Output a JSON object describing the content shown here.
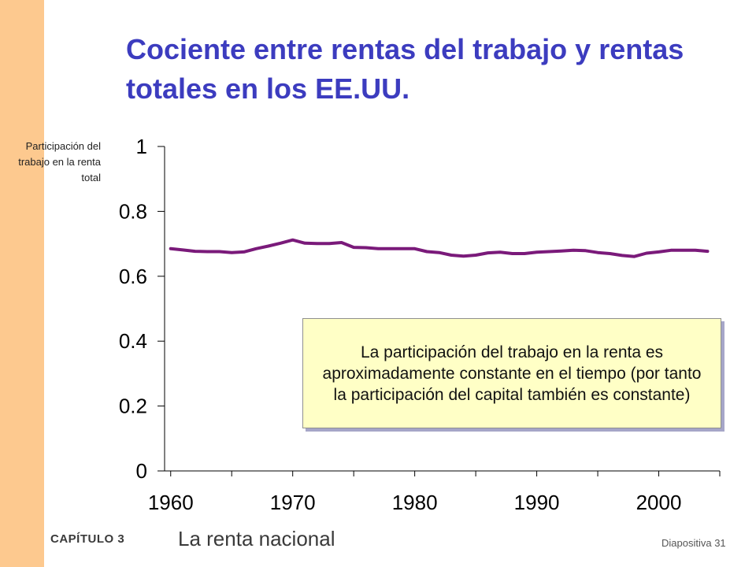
{
  "slide": {
    "title": "Cociente entre rentas del trabajo y rentas totales en los EE.UU.",
    "chapter": "CAPÍTULO 3",
    "topic": "La renta nacional",
    "slide_label": "Diapositiva 31"
  },
  "callout": {
    "text": "La participación del trabajo en la renta es aproximadamente constante en el tiempo (por tanto la participación del capital también es constante)",
    "background": "#ffffc6"
  },
  "colors": {
    "side_band": "#fdc98f",
    "title": "#3c3cbf",
    "series_line": "#7a1a7a"
  },
  "chart_data": {
    "type": "line",
    "title": "",
    "xlabel": "",
    "ylabel": "Participación del trabajo en la renta total",
    "xlim": [
      1959.5,
      2005
    ],
    "ylim": [
      0,
      1
    ],
    "x_ticks": [
      "1960",
      "1970",
      "1980",
      "1990",
      "2000"
    ],
    "y_ticks": [
      "0",
      "0.2",
      "0.4",
      "0.6",
      "0.8",
      "1"
    ],
    "grid": false,
    "series": [
      {
        "x": [
          1960,
          1961,
          1962,
          1963,
          1964,
          1965,
          1966,
          1967,
          1968,
          1969,
          1970,
          1971,
          1972,
          1973,
          1974,
          1975,
          1976,
          1977,
          1978,
          1979,
          1980,
          1981,
          1982,
          1983,
          1984,
          1985,
          1986,
          1987,
          1988,
          1989,
          1990,
          1991,
          1992,
          1993,
          1994,
          1995,
          1996,
          1997,
          1998,
          1999,
          2000,
          2001,
          2002,
          2003,
          2004
        ],
        "values": [
          0.685,
          0.681,
          0.677,
          0.676,
          0.676,
          0.673,
          0.675,
          0.685,
          0.693,
          0.702,
          0.712,
          0.702,
          0.701,
          0.701,
          0.704,
          0.689,
          0.688,
          0.685,
          0.685,
          0.685,
          0.685,
          0.676,
          0.673,
          0.665,
          0.662,
          0.665,
          0.672,
          0.674,
          0.67,
          0.67,
          0.674,
          0.676,
          0.678,
          0.68,
          0.679,
          0.673,
          0.67,
          0.664,
          0.661,
          0.671,
          0.675,
          0.68,
          0.68,
          0.68,
          0.677
        ]
      }
    ]
  }
}
